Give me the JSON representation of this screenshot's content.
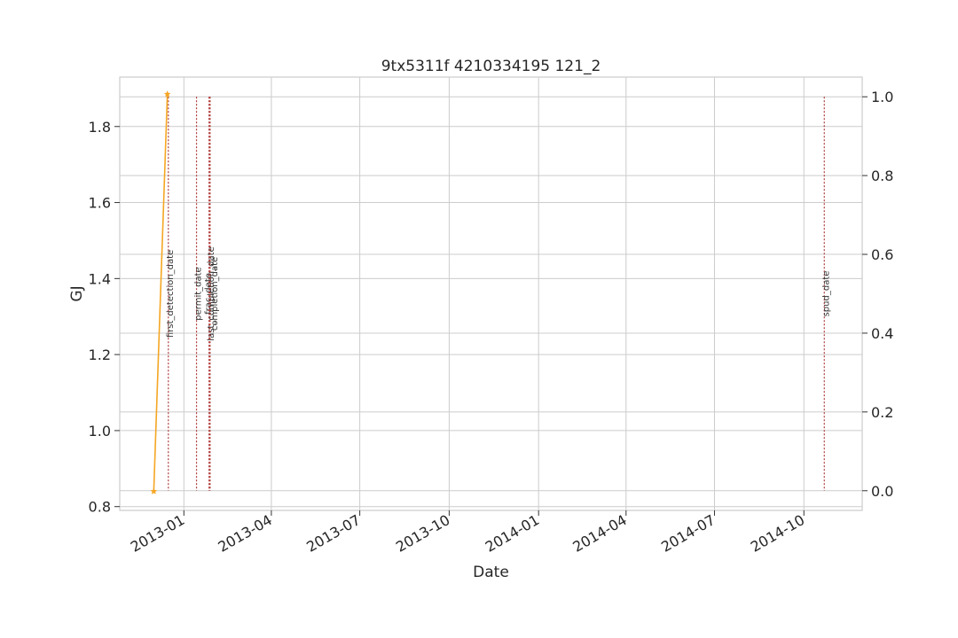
{
  "chart_data": {
    "type": "line",
    "title": "9tx5311f 4210334195 121_2",
    "xlabel": "Date",
    "ylabel": "GJ",
    "ylabel_color": "#1f77b4",
    "x_axis_type": "date",
    "xlim": [
      "2012-10-27",
      "2014-11-30"
    ],
    "ylim": [
      0.79,
      1.93
    ],
    "y2lim": [
      -0.05,
      1.05
    ],
    "grid": true,
    "x_ticks": [
      "2013-01",
      "2013-04",
      "2013-07",
      "2013-10",
      "2014-01",
      "2014-04",
      "2014-07",
      "2014-10"
    ],
    "y_ticks": [
      0.8,
      1.0,
      1.2,
      1.4,
      1.6,
      1.8
    ],
    "y2_ticks": [
      "0.0",
      "0.2",
      "0.4",
      "0.6",
      "0.8",
      "1.0"
    ],
    "series": [
      {
        "color": "#f5a623",
        "marker": "star",
        "x": [
          "2012-12-01",
          "2012-12-15"
        ],
        "y": [
          0.84,
          1.885
        ]
      }
    ],
    "events": [
      {
        "label": "first_detection_date",
        "date": "2012-12-16",
        "color": "#b03a3a"
      },
      {
        "label": "permit_date",
        "date": "2013-01-14",
        "color": "#b03a3a"
      },
      {
        "label": "frac_date",
        "date": "2013-01-27",
        "color": "#b03a3a"
      },
      {
        "label": "last_completion_date",
        "date": "2013-01-27",
        "color": "#b03a3a"
      },
      {
        "label": "completion_date",
        "date": "2013-01-28",
        "color": "#b03a3a"
      },
      {
        "label": "spud_date",
        "date": "2014-10-22",
        "color": "#b03a3a"
      }
    ]
  }
}
